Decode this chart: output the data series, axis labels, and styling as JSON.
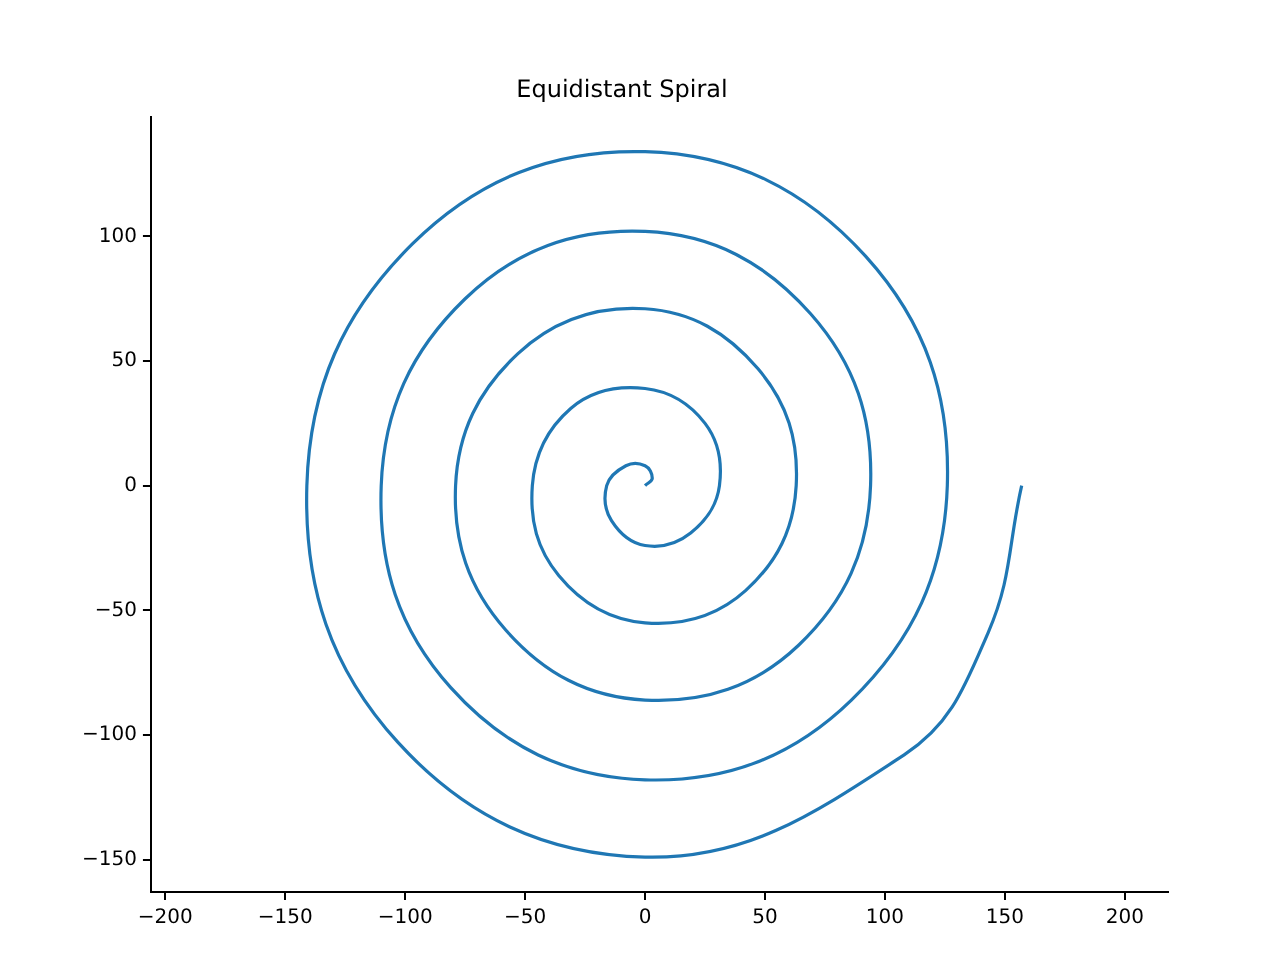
{
  "chart_data": {
    "type": "line",
    "title": "Equidistant Spiral",
    "x": [
      0,
      3,
      0,
      -8,
      -16,
      -14,
      0,
      19,
      31,
      25,
      0,
      -31,
      -47,
      -36,
      0,
      42,
      63,
      47,
      0,
      -53,
      -79,
      -58,
      0,
      64,
      94,
      69,
      0,
      -75,
      -110,
      -81,
      0,
      86,
      126,
      92,
      0,
      -97,
      -141,
      -103,
      0,
      108,
      143,
      157
    ],
    "series": [
      {
        "color": "#1f77b4",
        "values": [
          0,
          3,
          8,
          8,
          0,
          -14,
          -24,
          -19,
          0,
          25,
          39,
          31,
          0,
          -36,
          -55,
          -42,
          0,
          47,
          71,
          53,
          0,
          -58,
          -86,
          -64,
          0,
          69,
          102,
          75,
          0,
          -81,
          -118,
          -86,
          0,
          92,
          134,
          97,
          0,
          -103,
          -149,
          -108,
          -59,
          0
        ]
      }
    ],
    "xlim": [
      -206,
      218
    ],
    "xticks": [
      -200,
      -150,
      -100,
      -50,
      0,
      50,
      100,
      150,
      200
    ],
    "ylim": [
      -163,
      148
    ],
    "yticks": [
      -150,
      -100,
      -50,
      0,
      50,
      100
    ],
    "grid": false,
    "legend": false,
    "marker": "none",
    "line_style": "solid"
  }
}
